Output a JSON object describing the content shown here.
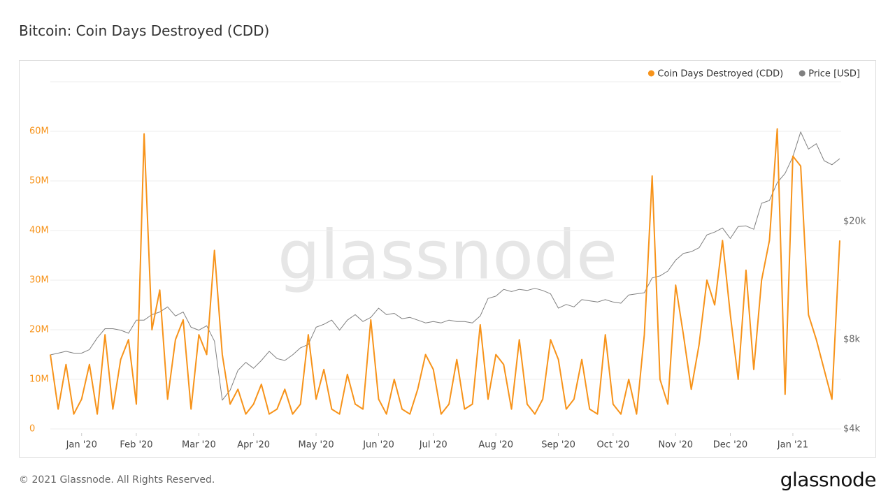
{
  "chart_data": {
    "type": "line",
    "title": "Bitcoin: Coin Days Destroyed (CDD)",
    "watermark": "glassnode",
    "legend": "top-right",
    "grid": true,
    "categories": [
      null,
      null,
      null,
      null,
      "Jan '20",
      null,
      null,
      null,
      null,
      null,
      null,
      "Feb '20",
      null,
      null,
      null,
      null,
      null,
      null,
      null,
      "Mar '20",
      null,
      null,
      null,
      null,
      null,
      null,
      "Apr '20",
      null,
      null,
      null,
      null,
      null,
      null,
      null,
      "May '20",
      null,
      null,
      null,
      null,
      null,
      null,
      null,
      "Jun '20",
      null,
      null,
      null,
      null,
      null,
      null,
      "Jul '20",
      null,
      null,
      null,
      null,
      null,
      null,
      null,
      "Aug '20",
      null,
      null,
      null,
      null,
      null,
      null,
      null,
      "Sep '20",
      null,
      null,
      null,
      null,
      null,
      null,
      "Oct '20",
      null,
      null,
      null,
      null,
      null,
      null,
      null,
      "Nov '20",
      null,
      null,
      null,
      null,
      null,
      null,
      "Dec '20",
      null,
      null,
      null,
      null,
      null,
      null,
      null,
      "Jan '21",
      null,
      null,
      null,
      null,
      null,
      null
    ],
    "series": [
      {
        "name": "Coin Days Destroyed (CDD)",
        "color": "#f7931a",
        "axis": "y",
        "values": [
          15000000,
          4000000,
          13000000,
          3000000,
          6000000,
          13000000,
          3000000,
          19000000,
          4000000,
          14000000,
          18000000,
          5000000,
          59500000,
          20000000,
          28000000,
          6000000,
          18000000,
          22000000,
          4000000,
          19000000,
          15000000,
          36000000,
          15000000,
          5000000,
          8000000,
          3000000,
          5000000,
          9000000,
          3000000,
          4000000,
          8000000,
          3000000,
          5000000,
          19000000,
          6000000,
          12000000,
          4000000,
          3000000,
          11000000,
          5000000,
          4000000,
          22000000,
          6000000,
          3000000,
          10000000,
          4000000,
          3000000,
          8000000,
          15000000,
          12000000,
          3000000,
          5000000,
          14000000,
          4000000,
          5000000,
          21000000,
          6000000,
          15000000,
          13000000,
          4000000,
          18000000,
          5000000,
          3000000,
          6000000,
          18000000,
          14000000,
          4000000,
          6000000,
          14000000,
          4000000,
          3000000,
          19000000,
          5000000,
          3000000,
          10000000,
          3000000,
          19000000,
          51000000,
          10000000,
          5000000,
          29000000,
          19000000,
          8000000,
          17000000,
          30000000,
          25000000,
          38000000,
          23000000,
          10000000,
          32000000,
          12000000,
          30000000,
          38000000,
          60500000,
          7000000,
          55000000,
          53000000,
          23000000,
          18000000,
          12000000,
          6000000,
          38000000
        ]
      },
      {
        "name": "Price [USD]",
        "color": "#808080",
        "axis": "y2",
        "values": [
          7100,
          7200,
          7300,
          7200,
          7200,
          7400,
          8100,
          8700,
          8700,
          8600,
          8400,
          9300,
          9300,
          9700,
          9900,
          10300,
          9600,
          9900,
          8800,
          8600,
          8900,
          7900,
          5000,
          5400,
          6300,
          6700,
          6400,
          6800,
          7300,
          6900,
          6800,
          7100,
          7500,
          7700,
          8800,
          9000,
          9300,
          8600,
          9300,
          9700,
          9200,
          9500,
          10200,
          9700,
          9800,
          9400,
          9500,
          9300,
          9100,
          9200,
          9100,
          9300,
          9200,
          9200,
          9100,
          9600,
          11000,
          11200,
          11800,
          11600,
          11800,
          11700,
          11900,
          11700,
          11400,
          10200,
          10500,
          10300,
          10900,
          10800,
          10700,
          10900,
          10700,
          10600,
          11300,
          11400,
          11500,
          12900,
          13100,
          13600,
          14800,
          15600,
          15800,
          16300,
          18000,
          18400,
          19000,
          17500,
          19200,
          19300,
          18800,
          23000,
          23500,
          27000,
          29000,
          33000,
          40000,
          35000,
          36500,
          32000,
          31000,
          32500
        ]
      }
    ],
    "ylim": [
      0,
      70000000
    ],
    "yticks": [
      {
        "value": 0,
        "label": "0"
      },
      {
        "value": 10000000,
        "label": "10M"
      },
      {
        "value": 20000000,
        "label": "20M"
      },
      {
        "value": 30000000,
        "label": "30M"
      },
      {
        "value": 40000000,
        "label": "40M"
      },
      {
        "value": 50000000,
        "label": "50M"
      },
      {
        "value": 60000000,
        "label": "60M"
      }
    ],
    "y2lim": [
      4000,
      59000
    ],
    "y2scale": "log",
    "y2ticks": [
      {
        "value": 4000,
        "label": "$4k"
      },
      {
        "value": 8000,
        "label": "$8k"
      },
      {
        "value": 20000,
        "label": "$20k"
      }
    ]
  },
  "footer": "© 2021 Glassnode. All Rights Reserved.",
  "logo": "glassnode"
}
